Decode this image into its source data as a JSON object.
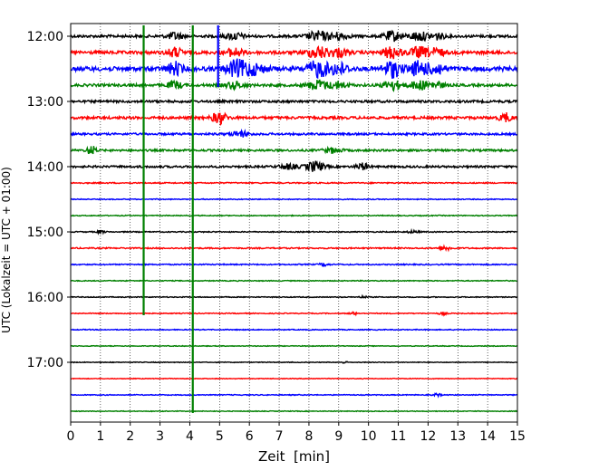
{
  "chart_data": {
    "type": "line",
    "title": "",
    "xlabel": "Zeit  [min]",
    "ylabel": "UTC (Lokalzeit = UTC + 01:00)",
    "xlim": [
      0,
      15
    ],
    "x_ticks": [
      0,
      1,
      2,
      3,
      4,
      5,
      6,
      7,
      8,
      9,
      10,
      11,
      12,
      13,
      14,
      15
    ],
    "x_tick_labels": [
      "0",
      "1",
      "2",
      "3",
      "4",
      "5",
      "6",
      "7",
      "8",
      "9",
      "10",
      "11",
      "12",
      "13",
      "14",
      "15"
    ],
    "grid": "vertical-dotted",
    "row_interval_minutes": 15,
    "start_time": "12:00",
    "rows": [
      {
        "time": "12:00",
        "color": "#000000",
        "amplitude": 0.45
      },
      {
        "time": "12:15",
        "color": "#ff0000",
        "amplitude": 0.55
      },
      {
        "time": "12:30",
        "color": "#0000ff",
        "amplitude": 0.75
      },
      {
        "time": "12:45",
        "color": "#008000",
        "amplitude": 0.45
      },
      {
        "time": "13:00",
        "color": "#000000",
        "amplitude": 0.4
      },
      {
        "time": "13:15",
        "color": "#ff0000",
        "amplitude": 0.45
      },
      {
        "time": "13:30",
        "color": "#0000ff",
        "amplitude": 0.35
      },
      {
        "time": "13:45",
        "color": "#008000",
        "amplitude": 0.35
      },
      {
        "time": "14:00",
        "color": "#000000",
        "amplitude": 0.35
      },
      {
        "time": "14:15",
        "color": "#ff0000",
        "amplitude": 0.2
      },
      {
        "time": "14:30",
        "color": "#0000ff",
        "amplitude": 0.15
      },
      {
        "time": "14:45",
        "color": "#008000",
        "amplitude": 0.15
      },
      {
        "time": "15:00",
        "color": "#000000",
        "amplitude": 0.18
      },
      {
        "time": "15:15",
        "color": "#ff0000",
        "amplitude": 0.22
      },
      {
        "time": "15:30",
        "color": "#0000ff",
        "amplitude": 0.2
      },
      {
        "time": "15:45",
        "color": "#008000",
        "amplitude": 0.15
      },
      {
        "time": "16:00",
        "color": "#000000",
        "amplitude": 0.15
      },
      {
        "time": "16:15",
        "color": "#ff0000",
        "amplitude": 0.15
      },
      {
        "time": "16:30",
        "color": "#0000ff",
        "amplitude": 0.15
      },
      {
        "time": "16:45",
        "color": "#008000",
        "amplitude": 0.12
      },
      {
        "time": "17:00",
        "color": "#000000",
        "amplitude": 0.12
      },
      {
        "time": "17:15",
        "color": "#ff0000",
        "amplitude": 0.12
      },
      {
        "time": "17:30",
        "color": "#0000ff",
        "amplitude": 0.15
      },
      {
        "time": "17:45",
        "color": "#008000",
        "amplitude": 0.12
      }
    ],
    "y_tick_labels": [
      "12:00",
      "13:00",
      "14:00",
      "15:00",
      "16:00",
      "17:00"
    ],
    "events": [
      {
        "time_rows": "12:00-12:45",
        "x_min": [
          3.5,
          8.3,
          10.8,
          11.7
        ],
        "strength": "strong"
      },
      {
        "time_rows": "13:15",
        "x_min": [
          5.0,
          14.6
        ],
        "strength": "strong"
      },
      {
        "time_rows": "14:00",
        "x_min": [
          8.2,
          9.8
        ],
        "strength": "strong"
      }
    ],
    "vertical_spikes": [
      {
        "x": 2.45,
        "color": "#008000",
        "from": "12:00",
        "to": "16:15"
      },
      {
        "x": 4.1,
        "color": "#008000",
        "from": "12:00",
        "to": "17:45"
      },
      {
        "x": 4.95,
        "color": "#0000ff",
        "from": "12:00",
        "to": "12:45"
      }
    ]
  }
}
